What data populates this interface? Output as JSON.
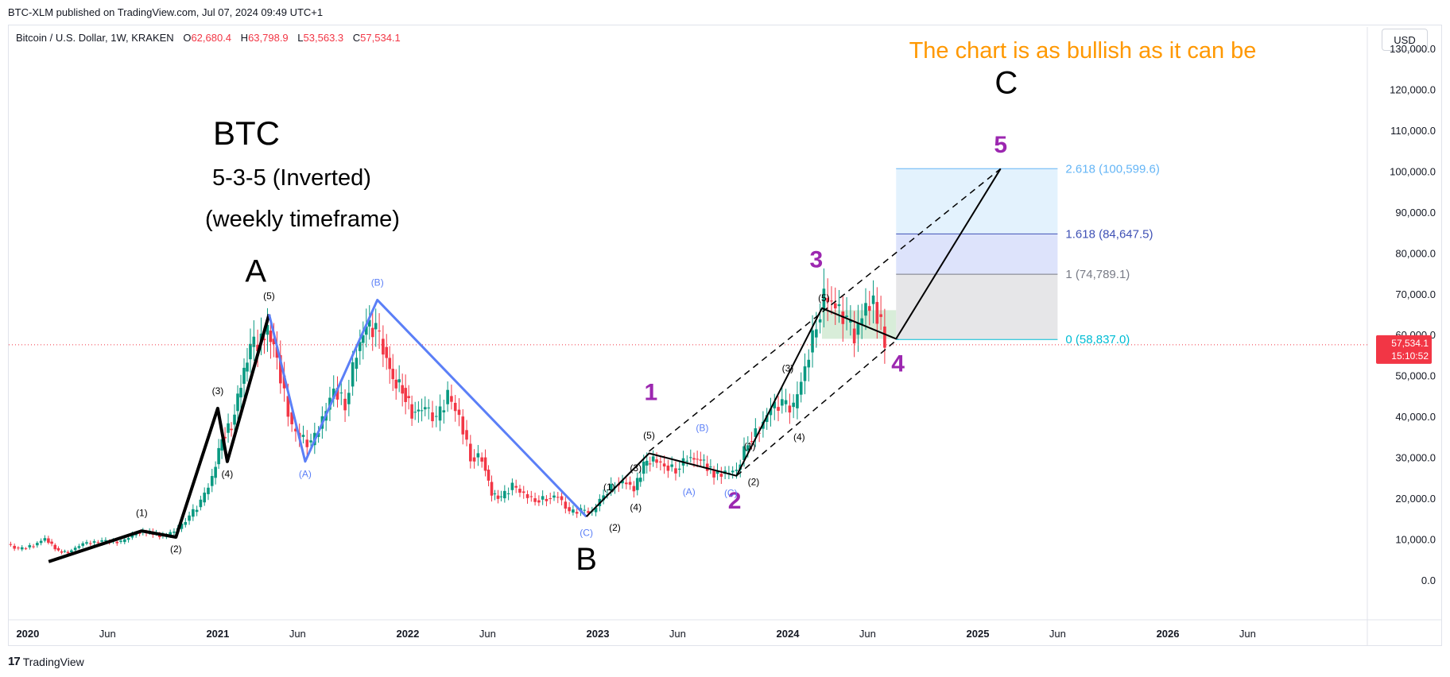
{
  "header": {
    "published": "BTC-XLM published on TradingView.com, Jul 07, 2024 09:49 UTC+1",
    "symbol": "Bitcoin / U.S. Dollar, 1W, KRAKEN",
    "ohlc": {
      "o_label": "O",
      "o": "62,680.4",
      "h_label": "H",
      "h": "63,798.9",
      "l_label": "L",
      "l": "53,563.3",
      "c_label": "C",
      "c": "57,534.1"
    },
    "currency": "USD"
  },
  "footer": {
    "brand": "TradingView",
    "logo": "tradingview-logo-icon"
  },
  "colors": {
    "up": "#089981",
    "down": "#f23645",
    "blue_line": "#5b7ff7",
    "purple": "#9c27b0",
    "orange": "#ff9800",
    "fib_top": "#64b5f6",
    "fib_mid": "#3f51b5",
    "fib_gray": "#787b86",
    "fib_zero": "#00bcd4"
  },
  "chart_data": {
    "type": "candlestick",
    "title": "The chart is as bullish as it can be",
    "annotations": {
      "title_block": [
        "BTC",
        "5-3-5 (Inverted)",
        "(weekly timeframe)"
      ]
    },
    "y_axis": {
      "ticks": [
        "130,000.0",
        "120,000.0",
        "110,000.0",
        "100,000.0",
        "90,000.0",
        "80,000.0",
        "70,000.0",
        "60,000.0",
        "50,000.0",
        "40,000.0",
        "30,000.0",
        "20,000.0",
        "10,000.0",
        "0.0"
      ],
      "values": [
        130000,
        120000,
        110000,
        100000,
        90000,
        80000,
        70000,
        60000,
        50000,
        40000,
        30000,
        20000,
        10000,
        0
      ],
      "range": [
        -5000,
        137000
      ]
    },
    "x_axis": {
      "ticks": [
        "2020",
        "Jun",
        "2021",
        "Jun",
        "2022",
        "Jun",
        "2023",
        "Jun",
        "2024",
        "Jun",
        "2025",
        "Jun",
        "2026",
        "Jun"
      ],
      "values": [
        2020.0,
        2020.42,
        2021.0,
        2021.42,
        2022.0,
        2022.42,
        2023.0,
        2023.42,
        2024.0,
        2024.42,
        2025.0,
        2025.42,
        2026.0,
        2026.42
      ],
      "range": [
        2019.9,
        2027.05
      ]
    },
    "last_price": {
      "value": 57534.1,
      "label": "57,534.1",
      "countdown": "15:10:52"
    },
    "price_path": [
      [
        2019.9,
        8800
      ],
      [
        2019.96,
        7500
      ],
      [
        2020.04,
        8500
      ],
      [
        2020.1,
        10200
      ],
      [
        2020.17,
        7000
      ],
      [
        2020.22,
        6800
      ],
      [
        2020.3,
        8900
      ],
      [
        2020.4,
        9500
      ],
      [
        2020.5,
        9300
      ],
      [
        2020.58,
        11500
      ],
      [
        2020.65,
        11800
      ],
      [
        2020.72,
        10600
      ],
      [
        2020.8,
        12500
      ],
      [
        2020.86,
        15500
      ],
      [
        2020.92,
        19000
      ],
      [
        2020.98,
        25000
      ],
      [
        2021.03,
        35000
      ],
      [
        2021.08,
        38000
      ],
      [
        2021.13,
        48000
      ],
      [
        2021.18,
        57000
      ],
      [
        2021.22,
        58000
      ],
      [
        2021.27,
        61000
      ],
      [
        2021.32,
        55000
      ],
      [
        2021.36,
        45000
      ],
      [
        2021.4,
        37000
      ],
      [
        2021.44,
        35000
      ],
      [
        2021.5,
        33000
      ],
      [
        2021.56,
        39000
      ],
      [
        2021.62,
        47000
      ],
      [
        2021.68,
        43000
      ],
      [
        2021.74,
        56000
      ],
      [
        2021.79,
        62000
      ],
      [
        2021.84,
        61000
      ],
      [
        2021.88,
        57000
      ],
      [
        2021.93,
        49000
      ],
      [
        2021.98,
        47000
      ],
      [
        2022.03,
        41000
      ],
      [
        2022.1,
        42000
      ],
      [
        2022.16,
        39000
      ],
      [
        2022.22,
        45000
      ],
      [
        2022.28,
        40000
      ],
      [
        2022.34,
        30000
      ],
      [
        2022.4,
        30000
      ],
      [
        2022.45,
        21000
      ],
      [
        2022.5,
        20000
      ],
      [
        2022.56,
        23000
      ],
      [
        2022.62,
        21000
      ],
      [
        2022.68,
        19500
      ],
      [
        2022.74,
        20000
      ],
      [
        2022.8,
        20500
      ],
      [
        2022.86,
        16500
      ],
      [
        2022.92,
        17000
      ],
      [
        2022.98,
        16600
      ],
      [
        2023.04,
        21000
      ],
      [
        2023.1,
        23500
      ],
      [
        2023.16,
        24000
      ],
      [
        2023.2,
        22000
      ],
      [
        2023.25,
        28000
      ],
      [
        2023.3,
        29500
      ],
      [
        2023.36,
        28000
      ],
      [
        2023.42,
        27000
      ],
      [
        2023.48,
        30000
      ],
      [
        2023.55,
        29300
      ],
      [
        2023.62,
        26000
      ],
      [
        2023.68,
        26000
      ],
      [
        2023.74,
        27000
      ],
      [
        2023.8,
        34000
      ],
      [
        2023.86,
        37000
      ],
      [
        2023.92,
        42000
      ],
      [
        2023.98,
        43000
      ],
      [
        2024.04,
        42000
      ],
      [
        2024.1,
        52000
      ],
      [
        2024.16,
        63000
      ],
      [
        2024.2,
        69000
      ],
      [
        2024.26,
        67000
      ],
      [
        2024.32,
        63000
      ],
      [
        2024.36,
        60000
      ],
      [
        2024.42,
        67000
      ],
      [
        2024.46,
        68000
      ],
      [
        2024.5,
        62000
      ],
      [
        2024.52,
        57534
      ]
    ],
    "wave_A_B_C": [
      [
        2020.11,
        4500
      ],
      [
        2020.6,
        12000
      ],
      [
        2020.78,
        10500
      ],
      [
        2021.0,
        42000
      ],
      [
        2021.05,
        29000
      ],
      [
        2021.27,
        65000
      ]
    ],
    "wave_blue": [
      [
        2021.27,
        65000
      ],
      [
        2021.46,
        29000
      ],
      [
        2021.84,
        68500
      ],
      [
        2022.94,
        15500
      ]
    ],
    "wave_black_2": [
      [
        2022.94,
        15500
      ],
      [
        2023.27,
        31000
      ],
      [
        2023.73,
        25500
      ],
      [
        2024.18,
        66500
      ],
      [
        2024.57,
        59000
      ],
      [
        2025.12,
        100599.6
      ]
    ],
    "channel_upper": [
      [
        2023.27,
        31500
      ],
      [
        2025.12,
        100599.6
      ]
    ],
    "channel_lower": [
      [
        2023.73,
        25500
      ],
      [
        2024.58,
        59000
      ]
    ],
    "fib": {
      "x_range": [
        2024.57,
        2025.42
      ],
      "levels": [
        {
          "ratio": "2.618",
          "value": 100599.6,
          "label": "2.618 (100,599.6)"
        },
        {
          "ratio": "1.618",
          "value": 84647.5,
          "label": "1.618 (84,647.5)"
        },
        {
          "ratio": "1",
          "value": 74789.1,
          "label": "1 (74,789.1)"
        },
        {
          "ratio": "0",
          "value": 58837.0,
          "label": "0 (58,837.0)"
        }
      ]
    },
    "green_box": {
      "x": [
        2024.18,
        2024.57
      ],
      "y": [
        59000,
        66000
      ]
    },
    "big_labels": [
      {
        "text": "A",
        "x": 2021.2,
        "y": 73000
      },
      {
        "text": "B",
        "x": 2022.94,
        "y": 2500
      },
      {
        "text": "C",
        "x": 2025.15,
        "y": 119000
      }
    ],
    "purple_labels": [
      {
        "text": "1",
        "x": 2023.28,
        "y": 44000
      },
      {
        "text": "2",
        "x": 2023.72,
        "y": 17500
      },
      {
        "text": "3",
        "x": 2024.15,
        "y": 76500
      },
      {
        "text": "4",
        "x": 2024.58,
        "y": 51000
      },
      {
        "text": "5",
        "x": 2025.12,
        "y": 104500
      }
    ],
    "small_black_labels": [
      {
        "text": "(1)",
        "x": 2020.6,
        "y": 15600
      },
      {
        "text": "(2)",
        "x": 2020.78,
        "y": 6800
      },
      {
        "text": "(3)",
        "x": 2021.0,
        "y": 45500
      },
      {
        "text": "(4)",
        "x": 2021.05,
        "y": 25200
      },
      {
        "text": "(5)",
        "x": 2021.27,
        "y": 68700
      },
      {
        "text": "(1)",
        "x": 2023.06,
        "y": 22000
      },
      {
        "text": "(2)",
        "x": 2023.09,
        "y": 12000
      },
      {
        "text": "(3)",
        "x": 2023.2,
        "y": 26600
      },
      {
        "text": "(4)",
        "x": 2023.2,
        "y": 17000
      },
      {
        "text": "(5)",
        "x": 2023.27,
        "y": 34600
      },
      {
        "text": "(1)",
        "x": 2023.8,
        "y": 32000
      },
      {
        "text": "(2)",
        "x": 2023.82,
        "y": 23200
      },
      {
        "text": "(3)",
        "x": 2024.0,
        "y": 51000
      },
      {
        "text": "(4)",
        "x": 2024.06,
        "y": 34200
      },
      {
        "text": "(5)",
        "x": 2024.19,
        "y": 68200
      }
    ],
    "small_blue_labels": [
      {
        "text": "(A)",
        "x": 2021.46,
        "y": 25200
      },
      {
        "text": "(B)",
        "x": 2021.84,
        "y": 72000
      },
      {
        "text": "(C)",
        "x": 2022.94,
        "y": 10800
      },
      {
        "text": "(A)",
        "x": 2023.48,
        "y": 20800
      },
      {
        "text": "(B)",
        "x": 2023.55,
        "y": 36400
      },
      {
        "text": "(C)",
        "x": 2023.7,
        "y": 20500
      }
    ]
  }
}
